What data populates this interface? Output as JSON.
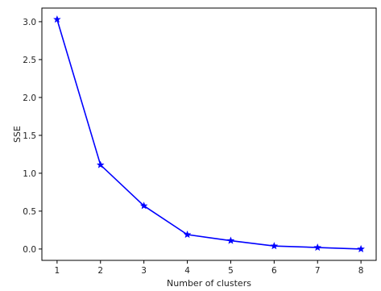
{
  "chart_data": {
    "type": "line",
    "title": "",
    "xlabel": "Number of clusters",
    "ylabel": "SSE",
    "x": [
      1,
      2,
      3,
      4,
      5,
      6,
      7,
      8
    ],
    "series": [
      {
        "values": [
          3.03,
          1.11,
          0.57,
          0.19,
          0.11,
          0.04,
          0.02,
          0.0
        ]
      }
    ],
    "xticks": [
      1,
      2,
      3,
      4,
      5,
      6,
      7,
      8
    ],
    "xtick_labels": [
      "1",
      "2",
      "3",
      "4",
      "5",
      "6",
      "7",
      "8"
    ],
    "yticks": [
      0.0,
      0.5,
      1.0,
      1.5,
      2.0,
      2.5,
      3.0
    ],
    "ytick_labels": [
      "0.0",
      "0.5",
      "1.0",
      "1.5",
      "2.0",
      "2.5",
      "3.0"
    ],
    "xlim": [
      0.65,
      8.35
    ],
    "ylim": [
      -0.15,
      3.18
    ],
    "marker": "star",
    "grid": false,
    "colors": {
      "line": "#0000ff",
      "axes": "#000000"
    }
  }
}
